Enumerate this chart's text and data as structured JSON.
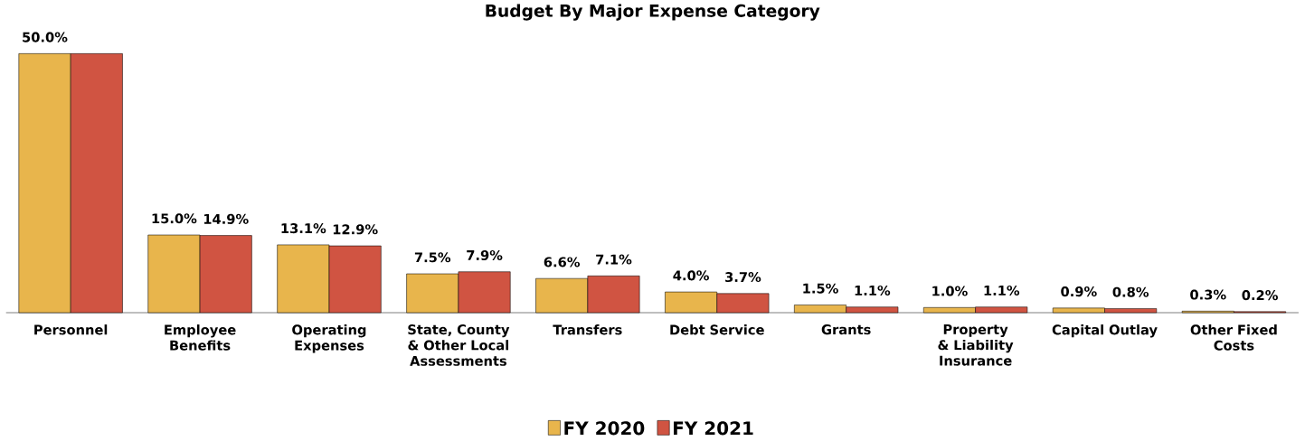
{
  "chart_data": {
    "type": "bar",
    "title": "Budget By Major Expense Category",
    "categories": [
      "Personnel",
      "Employee Benefits",
      "Operating Expenses",
      "State, County & Other Local Assessments",
      "Transfers",
      "Debt Service",
      "Grants",
      "Property & Liability Insurance",
      "Capital Outlay",
      "Other Fixed Costs"
    ],
    "series": [
      {
        "name": "FY 2020",
        "color": "#e8b54c",
        "values": [
          50.0,
          15.0,
          13.1,
          7.5,
          6.6,
          4.0,
          1.5,
          1.0,
          0.9,
          0.3
        ],
        "value_labels": [
          "50.0%",
          "15.0%",
          "13.1%",
          "7.5%",
          "6.6%",
          "4.0%",
          "1.5%",
          "1.0%",
          "0.9%",
          "0.3%"
        ]
      },
      {
        "name": "FY 2021",
        "color": "#d05442",
        "values": [
          50.0,
          14.9,
          12.9,
          7.9,
          7.1,
          3.7,
          1.1,
          1.1,
          0.8,
          0.2
        ],
        "value_labels": [
          null,
          "14.9%",
          "12.9%",
          "7.9%",
          "7.1%",
          "3.7%",
          "1.1%",
          "1.1%",
          "0.8%",
          "0.2%"
        ]
      }
    ],
    "legend": "bottom"
  }
}
